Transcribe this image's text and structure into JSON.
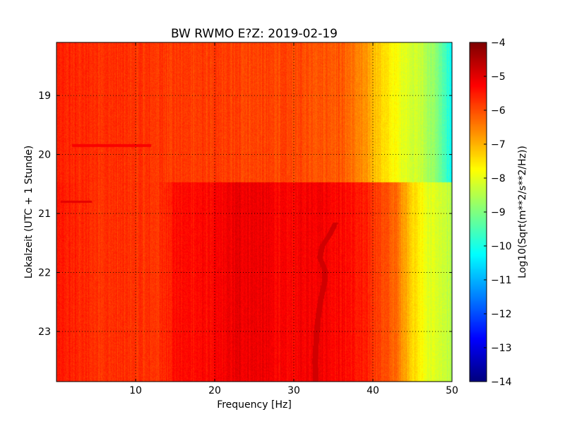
{
  "chart_data": {
    "type": "heatmap",
    "title": "BW RWMO E?Z: 2019-02-19",
    "xlabel": "Frequency [Hz]",
    "ylabel": "Lokalzeit (UTC + 1 Stunde)",
    "xlim": [
      0,
      50
    ],
    "ylim": [
      18.1,
      23.85
    ],
    "y_inverted": true,
    "x_ticks": [
      10,
      20,
      30,
      40,
      50
    ],
    "y_ticks": [
      19,
      20,
      21,
      22,
      23
    ],
    "grid": true,
    "colormap": "jet",
    "colorbar": {
      "label": "Log10(Sqrt(m**2/s**2/Hz))",
      "range": [
        -14,
        -4
      ],
      "ticks": [
        -4,
        -5,
        -6,
        -7,
        -8,
        -9,
        -10,
        -11,
        -12,
        -13,
        -14
      ]
    },
    "segments": [
      {
        "time_range": [
          18.1,
          20.47
        ],
        "freq_profile": [
          {
            "f": 0,
            "v": -5.6
          },
          {
            "f": 10,
            "v": -5.75
          },
          {
            "f": 20,
            "v": -5.85
          },
          {
            "f": 30,
            "v": -5.95
          },
          {
            "f": 36,
            "v": -6.1
          },
          {
            "f": 38,
            "v": -6.5
          },
          {
            "f": 40,
            "v": -7.0
          },
          {
            "f": 42,
            "v": -7.6
          },
          {
            "f": 44,
            "v": -8.0
          },
          {
            "f": 46,
            "v": -8.3
          },
          {
            "f": 48,
            "v": -8.9
          },
          {
            "f": 50,
            "v": -10.2
          }
        ]
      },
      {
        "time_range": [
          20.47,
          23.85
        ],
        "freq_profile": [
          {
            "f": 0,
            "v": -5.5
          },
          {
            "f": 5,
            "v": -5.7
          },
          {
            "f": 13,
            "v": -5.75
          },
          {
            "f": 15,
            "v": -5.35
          },
          {
            "f": 20,
            "v": -5.3
          },
          {
            "f": 23,
            "v": -5.05
          },
          {
            "f": 26,
            "v": -5.1
          },
          {
            "f": 29,
            "v": -5.3
          },
          {
            "f": 33,
            "v": -5.1
          },
          {
            "f": 37,
            "v": -5.35
          },
          {
            "f": 40,
            "v": -5.7
          },
          {
            "f": 43,
            "v": -6.3
          },
          {
            "f": 44,
            "v": -6.8
          },
          {
            "f": 45,
            "v": -7.3
          },
          {
            "f": 46,
            "v": -7.7
          },
          {
            "f": 47,
            "v": -8.0
          },
          {
            "f": 48,
            "v": -8.1
          },
          {
            "f": 50,
            "v": -8.5
          }
        ]
      }
    ],
    "features": [
      {
        "name": "wandering-line",
        "value": -4.8,
        "points": [
          {
            "t": 21.15,
            "f": 35.3
          },
          {
            "t": 21.35,
            "f": 34.6
          },
          {
            "t": 21.55,
            "f": 33.6
          },
          {
            "t": 21.75,
            "f": 33.3
          },
          {
            "t": 21.95,
            "f": 33.9
          },
          {
            "t": 22.15,
            "f": 33.9
          },
          {
            "t": 22.35,
            "f": 33.6
          },
          {
            "t": 22.55,
            "f": 33.3
          },
          {
            "t": 22.75,
            "f": 33.1
          },
          {
            "t": 23.0,
            "f": 32.9
          },
          {
            "t": 23.25,
            "f": 32.8
          },
          {
            "t": 23.5,
            "f": 32.7
          },
          {
            "t": 23.85,
            "f": 32.8
          }
        ]
      },
      {
        "name": "band-19-85",
        "time": 19.85,
        "freq_range": [
          2,
          12
        ],
        "value": -5.2
      },
      {
        "name": "band-20-8",
        "time": 20.8,
        "freq_range": [
          0.5,
          4.5
        ],
        "value": -5.0
      }
    ]
  }
}
